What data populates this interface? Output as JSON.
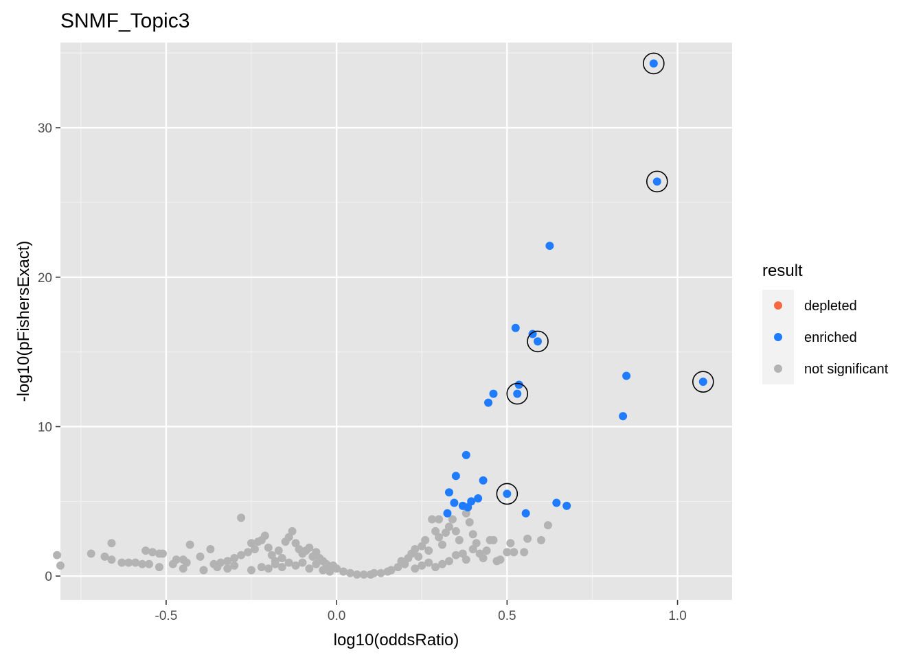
{
  "chart_data": {
    "type": "scatter",
    "title": "SNMF_Topic3",
    "xlabel": "log10(oddsRatio)",
    "ylabel": "-log10(pFishersExact)",
    "xlim": [
      -0.81,
      1.16
    ],
    "ylim": [
      -1.6,
      35.7
    ],
    "x_ticks": [
      -0.5,
      0.0,
      0.5,
      1.0
    ],
    "x_tick_labels": [
      "-0.5",
      "0.0",
      "0.5",
      "1.0"
    ],
    "y_ticks": [
      0,
      10,
      20,
      30
    ],
    "y_tick_labels": [
      "0",
      "10",
      "20",
      "30"
    ],
    "grid": true,
    "legend": {
      "title": "result",
      "position": "right",
      "entries": [
        {
          "label": "depleted",
          "color": "#F8673F"
        },
        {
          "label": "enriched",
          "color": "#1F7BFF"
        },
        {
          "label": "not significant",
          "color": "#B3B3B3"
        }
      ]
    },
    "series": [
      {
        "name": "enriched",
        "color": "#1F7BFF",
        "points": [
          [
            0.93,
            34.3
          ],
          [
            0.94,
            26.4
          ],
          [
            0.625,
            22.1
          ],
          [
            0.525,
            16.6
          ],
          [
            0.575,
            16.2
          ],
          [
            0.59,
            15.7
          ],
          [
            0.85,
            13.4
          ],
          [
            1.075,
            13.0
          ],
          [
            0.535,
            12.8
          ],
          [
            0.53,
            12.2
          ],
          [
            0.46,
            12.2
          ],
          [
            0.445,
            11.6
          ],
          [
            0.84,
            10.7
          ],
          [
            0.38,
            8.1
          ],
          [
            0.35,
            6.7
          ],
          [
            0.43,
            6.4
          ],
          [
            0.33,
            5.6
          ],
          [
            0.5,
            5.5
          ],
          [
            0.415,
            5.2
          ],
          [
            0.345,
            4.9
          ],
          [
            0.395,
            5.0
          ],
          [
            0.37,
            4.7
          ],
          [
            0.385,
            4.6
          ],
          [
            0.645,
            4.9
          ],
          [
            0.675,
            4.7
          ],
          [
            0.325,
            4.2
          ],
          [
            0.555,
            4.2
          ]
        ]
      },
      {
        "name": "not significant",
        "color": "#B3B3B3",
        "points": [
          [
            -0.82,
            1.4
          ],
          [
            -0.81,
            0.7
          ],
          [
            -0.72,
            1.5
          ],
          [
            -0.68,
            1.3
          ],
          [
            -0.66,
            2.2
          ],
          [
            -0.66,
            1.1
          ],
          [
            -0.63,
            0.9
          ],
          [
            -0.61,
            0.9
          ],
          [
            -0.59,
            0.9
          ],
          [
            -0.57,
            0.8
          ],
          [
            -0.56,
            1.7
          ],
          [
            -0.55,
            0.8
          ],
          [
            -0.54,
            1.6
          ],
          [
            -0.52,
            1.5
          ],
          [
            -0.51,
            1.5
          ],
          [
            -0.52,
            0.6
          ],
          [
            -0.48,
            0.8
          ],
          [
            -0.47,
            1.1
          ],
          [
            -0.45,
            1.1
          ],
          [
            -0.44,
            0.9
          ],
          [
            -0.45,
            0.5
          ],
          [
            -0.43,
            2.1
          ],
          [
            -0.4,
            1.3
          ],
          [
            -0.39,
            0.4
          ],
          [
            -0.37,
            1.8
          ],
          [
            -0.36,
            0.8
          ],
          [
            -0.34,
            0.9
          ],
          [
            -0.32,
            1.0
          ],
          [
            -0.3,
            1.2
          ],
          [
            -0.28,
            1.4
          ],
          [
            -0.28,
            3.9
          ],
          [
            -0.26,
            1.6
          ],
          [
            -0.25,
            2.2
          ],
          [
            -0.24,
            1.8
          ],
          [
            -0.23,
            2.3
          ],
          [
            -0.22,
            2.4
          ],
          [
            -0.21,
            2.7
          ],
          [
            -0.2,
            1.9
          ],
          [
            -0.19,
            1.4
          ],
          [
            -0.18,
            1.0
          ],
          [
            -0.17,
            1.7
          ],
          [
            -0.16,
            1.2
          ],
          [
            -0.15,
            2.3
          ],
          [
            -0.14,
            2.6
          ],
          [
            -0.13,
            3.0
          ],
          [
            -0.12,
            2.2
          ],
          [
            -0.11,
            1.8
          ],
          [
            -0.1,
            1.5
          ],
          [
            -0.09,
            1.7
          ],
          [
            -0.08,
            1.9
          ],
          [
            -0.07,
            1.3
          ],
          [
            -0.06,
            1.6
          ],
          [
            -0.05,
            1.2
          ],
          [
            -0.04,
            1.0
          ],
          [
            -0.03,
            0.8
          ],
          [
            -0.02,
            0.6
          ],
          [
            -0.01,
            0.7
          ],
          [
            -0.35,
            0.6
          ],
          [
            -0.32,
            0.5
          ],
          [
            -0.3,
            0.7
          ],
          [
            -0.25,
            0.4
          ],
          [
            -0.22,
            0.6
          ],
          [
            -0.2,
            0.5
          ],
          [
            -0.18,
            0.8
          ],
          [
            -0.16,
            0.6
          ],
          [
            -0.14,
            0.9
          ],
          [
            -0.12,
            0.7
          ],
          [
            -0.1,
            0.9
          ],
          [
            -0.08,
            0.5
          ],
          [
            -0.06,
            0.8
          ],
          [
            -0.04,
            0.4
          ],
          [
            -0.02,
            0.3
          ],
          [
            0.0,
            0.5
          ],
          [
            0.02,
            0.3
          ],
          [
            0.04,
            0.2
          ],
          [
            0.06,
            0.1
          ],
          [
            0.08,
            0.1
          ],
          [
            0.1,
            0.1
          ],
          [
            0.11,
            0.2
          ],
          [
            0.13,
            0.2
          ],
          [
            0.15,
            0.3
          ],
          [
            0.16,
            0.4
          ],
          [
            0.18,
            0.6
          ],
          [
            0.19,
            1.0
          ],
          [
            0.2,
            0.8
          ],
          [
            0.21,
            1.2
          ],
          [
            0.22,
            1.5
          ],
          [
            0.23,
            1.8
          ],
          [
            0.24,
            1.3
          ],
          [
            0.25,
            2.0
          ],
          [
            0.26,
            2.4
          ],
          [
            0.27,
            1.7
          ],
          [
            0.28,
            3.8
          ],
          [
            0.29,
            3.0
          ],
          [
            0.3,
            2.6
          ],
          [
            0.3,
            3.8
          ],
          [
            0.31,
            2.1
          ],
          [
            0.32,
            2.9
          ],
          [
            0.33,
            3.3
          ],
          [
            0.34,
            3.8
          ],
          [
            0.35,
            3.0
          ],
          [
            0.36,
            2.4
          ],
          [
            0.37,
            1.5
          ],
          [
            0.38,
            4.2
          ],
          [
            0.39,
            3.6
          ],
          [
            0.4,
            2.8
          ],
          [
            0.41,
            2.2
          ],
          [
            0.42,
            1.5
          ],
          [
            0.43,
            1.2
          ],
          [
            0.44,
            1.7
          ],
          [
            0.45,
            2.4
          ],
          [
            0.46,
            2.4
          ],
          [
            0.47,
            1.0
          ],
          [
            0.48,
            1.1
          ],
          [
            0.5,
            1.6
          ],
          [
            0.51,
            2.2
          ],
          [
            0.52,
            1.6
          ],
          [
            0.55,
            1.6
          ],
          [
            0.56,
            2.5
          ],
          [
            0.6,
            2.4
          ],
          [
            0.62,
            3.4
          ],
          [
            0.4,
            1.8
          ],
          [
            0.38,
            1.1
          ],
          [
            0.35,
            1.4
          ],
          [
            0.33,
            1.0
          ],
          [
            0.31,
            0.8
          ],
          [
            0.29,
            0.6
          ],
          [
            0.27,
            0.9
          ],
          [
            0.25,
            0.7
          ],
          [
            0.23,
            0.5
          ]
        ]
      }
    ],
    "highlighted": [
      [
        0.93,
        34.3
      ],
      [
        0.94,
        26.4
      ],
      [
        0.59,
        15.7
      ],
      [
        1.075,
        13.0
      ],
      [
        0.53,
        12.2
      ],
      [
        0.5,
        5.5
      ]
    ]
  }
}
